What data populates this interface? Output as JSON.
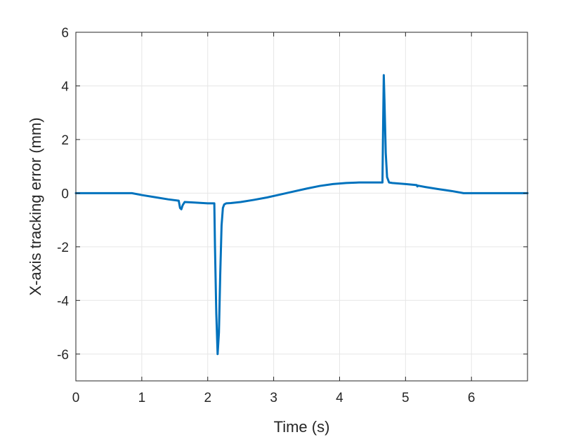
{
  "chart_data": {
    "type": "line",
    "title": "",
    "xlabel": "Time (s)",
    "ylabel": "X-axis tracking error (mm)",
    "xlim": [
      0,
      6.85
    ],
    "ylim": [
      -7,
      6
    ],
    "xticks": [
      0,
      1,
      2,
      3,
      4,
      5,
      6
    ],
    "yticks": [
      -6,
      -4,
      -2,
      0,
      2,
      4,
      6
    ],
    "xtick_labels": [
      "0",
      "1",
      "2",
      "3",
      "4",
      "5",
      "6"
    ],
    "ytick_labels": [
      "-6",
      "-4",
      "-2",
      "0",
      "2",
      "4",
      "6"
    ],
    "grid": true,
    "colors": {
      "series": "#0072BD",
      "grid": "#e6e6e6",
      "axis": "#262626"
    },
    "series": [
      {
        "x": [
          0,
          0.85,
          1.0,
          1.2,
          1.4,
          1.56,
          1.58,
          1.6,
          1.62,
          1.65,
          1.8,
          2.0,
          2.1,
          2.11,
          2.13,
          2.15,
          2.17,
          2.19,
          2.21,
          2.23,
          2.25,
          2.28,
          2.35,
          2.5,
          2.7,
          2.9,
          3.1,
          3.3,
          3.5,
          3.7,
          3.9,
          4.1,
          4.3,
          4.5,
          4.65,
          4.66,
          4.67,
          4.68,
          4.7,
          4.72,
          4.75,
          4.8,
          4.9,
          5.0,
          5.17,
          5.18,
          5.19,
          5.3,
          5.5,
          5.7,
          5.88,
          6.0,
          6.2,
          6.5,
          6.85
        ],
        "y": [
          0,
          0,
          -0.07,
          -0.15,
          -0.23,
          -0.28,
          -0.55,
          -0.6,
          -0.45,
          -0.33,
          -0.35,
          -0.38,
          -0.38,
          -2.0,
          -4.5,
          -6.0,
          -5.2,
          -3.0,
          -1.2,
          -0.55,
          -0.42,
          -0.38,
          -0.37,
          -0.33,
          -0.25,
          -0.16,
          -0.05,
          0.06,
          0.17,
          0.27,
          0.34,
          0.38,
          0.4,
          0.4,
          0.4,
          2.5,
          4.4,
          3.5,
          1.5,
          0.6,
          0.4,
          0.38,
          0.36,
          0.34,
          0.3,
          0.25,
          0.28,
          0.23,
          0.15,
          0.08,
          0.0,
          0.0,
          0.0,
          0.0,
          0.0
        ]
      }
    ]
  }
}
